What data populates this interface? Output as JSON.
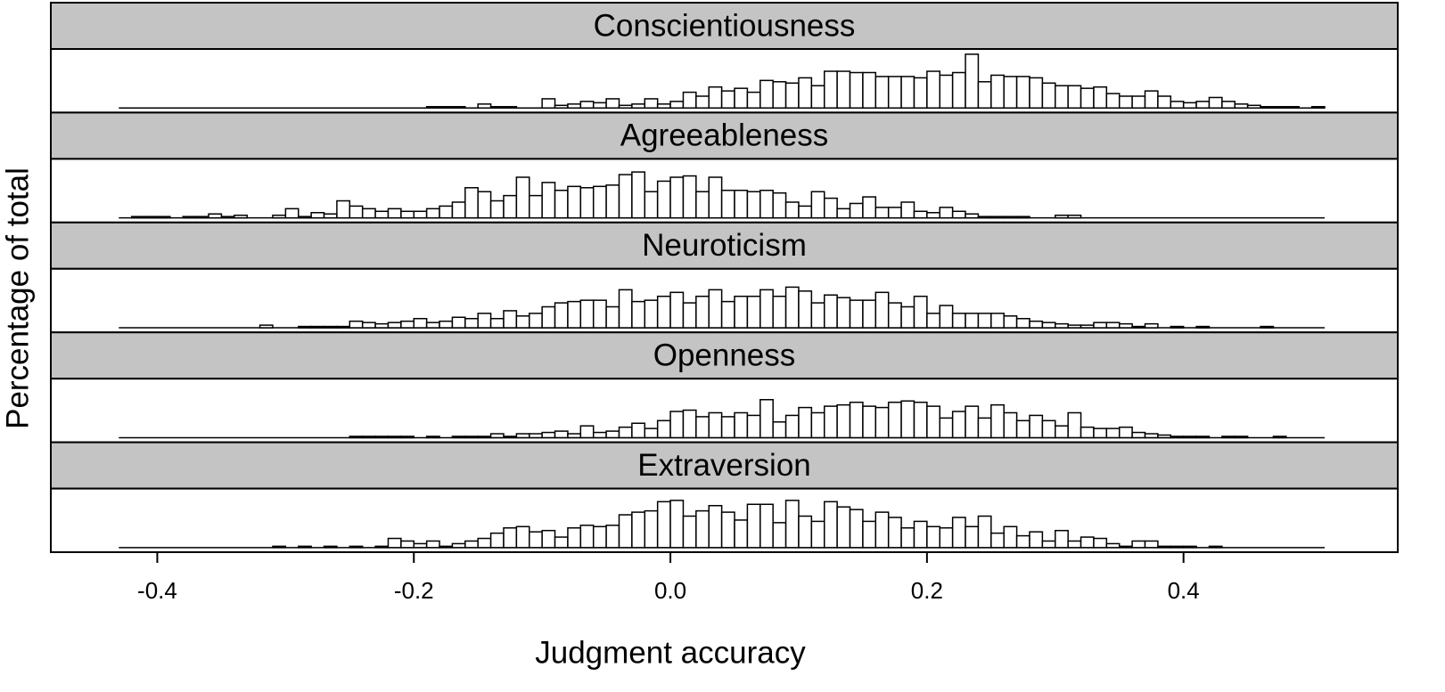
{
  "chart_data": {
    "type": "histogram",
    "xlabel": "Judgment accuracy",
    "ylabel": "Percentage of total",
    "xlim": [
      -0.483,
      0.567
    ],
    "xticks": [
      -0.4,
      -0.2,
      {
        "value": 0,
        "label": "0.0"
      },
      0.2,
      0.4
    ],
    "ylim": [
      -0.35,
      4.5
    ],
    "bins": [
      -0.43,
      -0.42,
      -0.41,
      -0.4,
      -0.39,
      -0.38,
      -0.37,
      -0.36,
      -0.35,
      -0.34,
      -0.33,
      -0.32,
      -0.31,
      -0.3,
      -0.29,
      -0.28,
      -0.27,
      -0.26,
      -0.25,
      -0.24,
      -0.23,
      -0.22,
      -0.21,
      -0.2,
      -0.19,
      -0.18,
      -0.17,
      -0.16,
      -0.15,
      -0.14,
      -0.13,
      -0.12,
      -0.11,
      -0.1,
      -0.09,
      -0.08,
      -0.07,
      -0.06,
      -0.05,
      -0.04,
      -0.03,
      -0.02,
      -0.01,
      0,
      0.01,
      0.02,
      0.03,
      0.04,
      0.05,
      0.06,
      0.07,
      0.08,
      0.09,
      0.1,
      0.11,
      0.12,
      0.13,
      0.14,
      0.15,
      0.16,
      0.17,
      0.18,
      0.19,
      0.2,
      0.21,
      0.22,
      0.23,
      0.24,
      0.25,
      0.26,
      0.27,
      0.28,
      0.29,
      0.3,
      0.31,
      0.32,
      0.33,
      0.34,
      0.35,
      0.36,
      0.37,
      0.38,
      0.39,
      0.4,
      0.41,
      0.42,
      0.43,
      0.44,
      0.45,
      0.46,
      0.47,
      0.48,
      0.49,
      0.5,
      0.51
    ],
    "bar_color": "#ffffff",
    "edge_color": "#000000",
    "strip_color": "#c4c4c4",
    "panels": [
      {
        "name": "Conscientiousness",
        "values": [
          0,
          0,
          0,
          0,
          0,
          0,
          0,
          0,
          0,
          0,
          0,
          0,
          0,
          0,
          0,
          0,
          0,
          0,
          0,
          0,
          0,
          0,
          0,
          0,
          0.1,
          0.1,
          0.1,
          0,
          0.3,
          0.1,
          0.1,
          0,
          0,
          0.7,
          0.2,
          0.3,
          0.5,
          0.4,
          0.7,
          0.2,
          0.3,
          0.7,
          0.3,
          0.5,
          1.2,
          0.9,
          1.6,
          1.3,
          1.5,
          1.2,
          2.1,
          2.0,
          1.9,
          2.3,
          1.7,
          2.8,
          2.8,
          2.7,
          2.7,
          2.4,
          2.4,
          2.4,
          2.3,
          2.8,
          2.5,
          2.7,
          4.1,
          2.0,
          2.5,
          2.4,
          2.4,
          2.3,
          1.9,
          1.7,
          1.7,
          1.5,
          1.6,
          1.1,
          0.9,
          0.9,
          1.3,
          0.9,
          0.5,
          0.4,
          0.5,
          0.8,
          0.5,
          0.3,
          0.2,
          0.1,
          0.1,
          0.1,
          0,
          0.1
        ]
      },
      {
        "name": "Agreeableness",
        "values": [
          0,
          0.1,
          0.1,
          0.1,
          0,
          0.1,
          0.1,
          0.3,
          0.1,
          0.2,
          0,
          0,
          0.2,
          0.7,
          0.1,
          0.4,
          0.3,
          1.3,
          0.9,
          0.7,
          0.5,
          0.7,
          0.5,
          0.5,
          0.7,
          0.9,
          1.2,
          2.3,
          2.0,
          1.3,
          1.7,
          3.1,
          1.7,
          2.7,
          2.1,
          2.4,
          2.3,
          2.4,
          2.5,
          3.3,
          3.5,
          2.0,
          2.8,
          3.1,
          3.2,
          2.0,
          3.1,
          2.1,
          2.1,
          2.0,
          2.1,
          1.9,
          1.2,
          0.9,
          2.0,
          1.5,
          0.7,
          1.1,
          1.6,
          0.8,
          0.8,
          1.2,
          0.5,
          0.4,
          0.8,
          0.5,
          0.3,
          0.1,
          0.1,
          0.1,
          0.1,
          0,
          0,
          0.2,
          0.2,
          0,
          0,
          0,
          0,
          0,
          0,
          0,
          0,
          0,
          0,
          0,
          0,
          0,
          0,
          0,
          0,
          0,
          0,
          0
        ]
      },
      {
        "name": "Neuroticism",
        "values": [
          0,
          0,
          0,
          0,
          0,
          0,
          0,
          0,
          0,
          0,
          0,
          0.2,
          0,
          0,
          0.1,
          0.1,
          0.1,
          0.1,
          0.5,
          0.4,
          0.3,
          0.4,
          0.5,
          0.7,
          0.4,
          0.5,
          0.8,
          0.7,
          1.1,
          0.7,
          1.3,
          0.9,
          1.1,
          1.6,
          1.9,
          2.0,
          2.1,
          2.1,
          1.6,
          2.9,
          2.0,
          2.1,
          2.4,
          2.7,
          1.9,
          2.4,
          2.9,
          2.0,
          2.4,
          2.4,
          2.9,
          2.4,
          3.1,
          2.8,
          1.9,
          2.5,
          2.3,
          2.1,
          2.1,
          2.7,
          1.9,
          1.6,
          2.4,
          1.1,
          1.7,
          1.1,
          1.1,
          1.1,
          1.1,
          0.9,
          0.7,
          0.5,
          0.4,
          0.3,
          0.2,
          0.2,
          0.4,
          0.4,
          0.3,
          0.1,
          0.3,
          0,
          0.1,
          0,
          0.1,
          0,
          0,
          0,
          0,
          0.1,
          0,
          0,
          0,
          0
        ]
      },
      {
        "name": "Openness",
        "values": [
          0,
          0,
          0,
          0,
          0,
          0,
          0,
          0,
          0,
          0,
          0,
          0,
          0,
          0,
          0,
          0,
          0,
          0,
          0.1,
          0.1,
          0.1,
          0.1,
          0.1,
          0,
          0.1,
          0,
          0.1,
          0.1,
          0.1,
          0.3,
          0.1,
          0.3,
          0.3,
          0.4,
          0.5,
          0.3,
          0.9,
          0.4,
          0.5,
          0.8,
          1.1,
          0.7,
          1.3,
          2.0,
          2.1,
          1.6,
          1.9,
          1.6,
          1.9,
          1.7,
          2.9,
          1.2,
          1.7,
          2.3,
          1.9,
          2.4,
          2.5,
          2.7,
          2.4,
          2.3,
          2.7,
          2.8,
          2.7,
          2.4,
          1.5,
          2.0,
          2.4,
          1.5,
          2.5,
          1.9,
          1.3,
          1.7,
          1.3,
          0.9,
          1.9,
          0.8,
          0.7,
          0.7,
          0.8,
          0.4,
          0.3,
          0.2,
          0.1,
          0.1,
          0.1,
          0,
          0.1,
          0.1,
          0,
          0,
          0.1,
          0,
          0,
          0
        ]
      },
      {
        "name": "Extraversion",
        "values": [
          0,
          0,
          0,
          0,
          0,
          0,
          0,
          0,
          0,
          0,
          0,
          0,
          0.1,
          0,
          0.1,
          0,
          0.1,
          0,
          0.1,
          0,
          0.1,
          0.7,
          0.5,
          0.3,
          0.5,
          0.1,
          0.3,
          0.5,
          0.7,
          1.1,
          1.5,
          1.6,
          1.2,
          1.3,
          0.8,
          1.5,
          1.7,
          1.6,
          1.7,
          2.5,
          2.7,
          2.8,
          3.5,
          3.6,
          2.4,
          2.8,
          3.2,
          2.7,
          2.1,
          3.3,
          3.3,
          1.9,
          3.6,
          2.4,
          2.0,
          3.5,
          3.1,
          2.9,
          2.0,
          2.7,
          2.3,
          1.5,
          2.0,
          1.6,
          1.5,
          2.3,
          1.6,
          2.4,
          1.1,
          1.6,
          0.9,
          1.2,
          0.5,
          1.3,
          0.5,
          0.8,
          0.7,
          0.3,
          0.1,
          0.5,
          0.5,
          0.1,
          0.1,
          0.1,
          0,
          0.1,
          0,
          0,
          0,
          0,
          0,
          0,
          0,
          0
        ]
      }
    ]
  }
}
